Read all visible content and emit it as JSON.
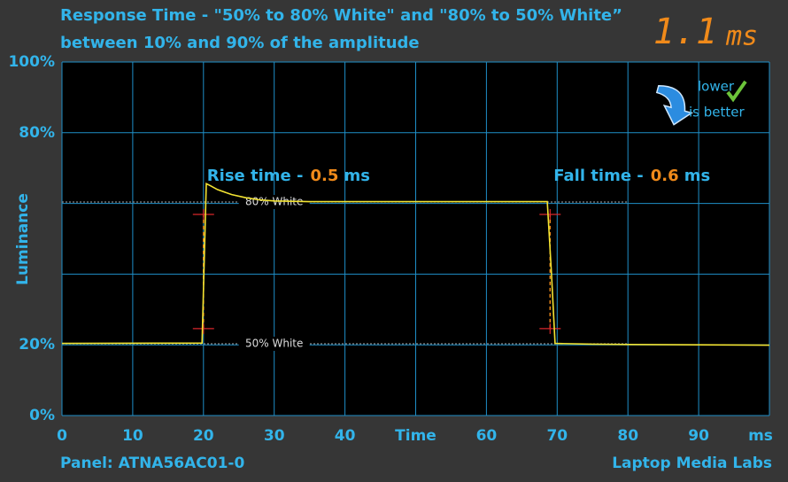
{
  "chart_data": {
    "type": "line",
    "title": [
      "Response Time - \"50% to 80% White\" and \"80% to 50% White”",
      "between 10% and 90% of the amplitude"
    ],
    "display": {
      "value": "1.1",
      "unit": "ms"
    },
    "badge": [
      "lower",
      "is better"
    ],
    "y_label": "Luminance",
    "x_label": "Time",
    "x_unit": "ms",
    "xlim": [
      0,
      100
    ],
    "ylim": [
      0,
      100
    ],
    "xticks": [
      0,
      10,
      20,
      30,
      40,
      60,
      70,
      80,
      90
    ],
    "yticks": [
      {
        "value": 100,
        "label": "100%"
      },
      {
        "value": 80,
        "label": "80%"
      },
      {
        "value": 20,
        "label": "20%"
      },
      {
        "value": 0,
        "label": "0%"
      }
    ],
    "xgrid": [
      0,
      10,
      20,
      30,
      40,
      50,
      60,
      70,
      80,
      90,
      100
    ],
    "ygrid": [
      0,
      20,
      40,
      60,
      80,
      100
    ],
    "grid_color": "#1f8fc8",
    "series": [
      {
        "color": "#f2e332",
        "x": [
          0,
          19.8,
          20.4,
          21,
          22,
          24,
          26,
          28,
          30,
          35,
          40,
          50,
          60,
          68.6,
          69.2,
          69.7,
          75,
          80,
          90,
          100
        ],
        "values": [
          20.4,
          20.5,
          65.6,
          65.0,
          63.9,
          62.5,
          61.6,
          61.0,
          60.7,
          60.5,
          60.5,
          60.5,
          60.5,
          60.5,
          40,
          20.4,
          20.2,
          20.1,
          20.0,
          19.9
        ]
      }
    ],
    "reference_lines": [
      {
        "label": "80% White",
        "value": 60.4,
        "xlim": [
          0,
          80
        ]
      },
      {
        "label": "50% White",
        "value": 20.3,
        "xlim": [
          0,
          80
        ]
      }
    ],
    "measurements": [
      {
        "label": "Rise time -",
        "value": 0.5,
        "unit": "ms",
        "x": 20,
        "markers": [
          24.6,
          56.9
        ]
      },
      {
        "label": "Fall time -",
        "value": 0.6,
        "unit": "ms",
        "x": 69,
        "markers": [
          24.6,
          56.9
        ]
      }
    ],
    "panel": "Panel: ATNA56AC01-0",
    "credit": "Laptop Media Labs"
  }
}
